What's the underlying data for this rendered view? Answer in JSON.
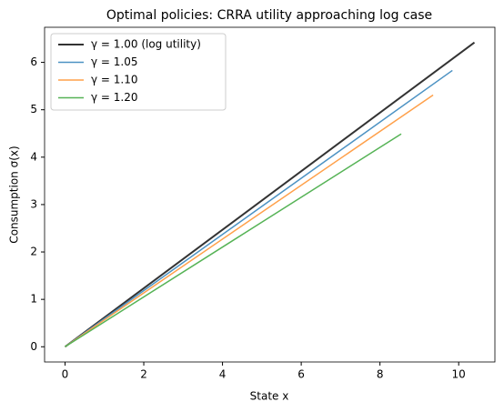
{
  "chart_data": {
    "type": "line",
    "title": "Optimal policies: CRRA utility approaching log case",
    "x_label": "State x",
    "y_label": "Consumption σ(x)",
    "series": [
      {
        "name": "γ = 1.00 (log utility)",
        "color": "#333333",
        "x": [
          0,
          10.4
        ],
        "values": [
          0,
          6.42
        ]
      },
      {
        "name": "γ = 1.05",
        "color": "#4c92c3",
        "x": [
          0,
          9.84
        ],
        "values": [
          0,
          5.83
        ]
      },
      {
        "name": "γ = 1.10",
        "color": "#ffa04a",
        "x": [
          0,
          9.35
        ],
        "values": [
          0,
          5.31
        ]
      },
      {
        "name": "γ = 1.20",
        "color": "#56b356",
        "x": [
          0,
          8.54
        ],
        "values": [
          0,
          4.49
        ]
      }
    ],
    "xlim": [
      -0.52,
      10.92
    ],
    "xticks": [
      0,
      2,
      4,
      6,
      8,
      10
    ],
    "ylim": [
      -0.321,
      6.74
    ],
    "yticks": [
      0,
      1,
      2,
      3,
      4,
      5,
      6
    ],
    "grid": false,
    "legend": "upper left"
  }
}
